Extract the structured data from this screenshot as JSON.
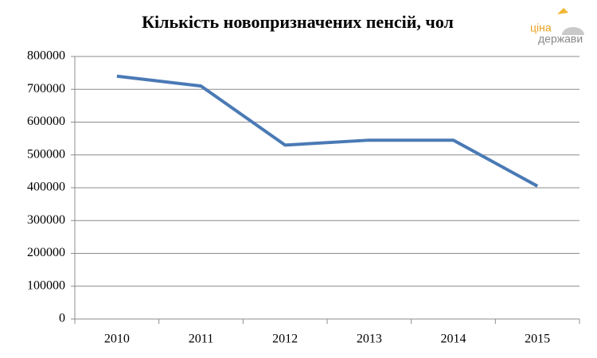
{
  "chart_data": {
    "type": "line",
    "title": "Кількість новопризначених пенсій, чол",
    "categories": [
      "2010",
      "2011",
      "2012",
      "2013",
      "2014",
      "2015"
    ],
    "series": [
      {
        "name": "Кількість новопризначених пенсій",
        "color": "#4a7ab5",
        "values": [
          740000,
          710000,
          530000,
          545000,
          545000,
          405000
        ]
      }
    ],
    "ylim": [
      0,
      800000
    ],
    "yticks": [
      0,
      100000,
      200000,
      300000,
      400000,
      500000,
      600000,
      700000,
      800000
    ],
    "grid": true
  },
  "logo": {
    "line1": "ціна",
    "line2": "держави"
  }
}
